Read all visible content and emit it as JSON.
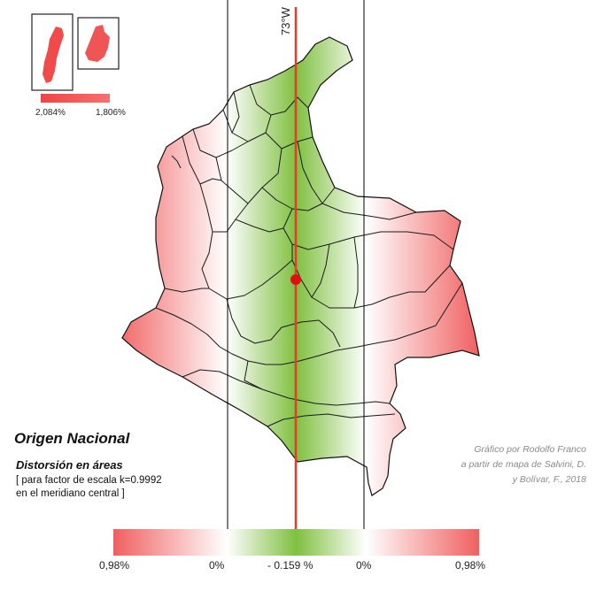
{
  "meridian": {
    "label": "73°W"
  },
  "title": "Origen Nacional",
  "subtitle": "Distorsión en áreas",
  "note_lines": [
    "[ para factor de escala k=0.9992",
    "en el meridiano central ]"
  ],
  "credit_lines": [
    "Gráfico por Rodolfo Franco",
    "a partir de mapa de Salvini, D.",
    "y Bolívar, F., 2018"
  ],
  "scale_bar": {
    "labels": [
      "0,98%",
      "0%",
      "- 0.159 %",
      "0%",
      "0,98%"
    ],
    "colors": {
      "max": "#f06060",
      "zero": "#ffffff",
      "min": "#80c040"
    }
  },
  "inset": {
    "labels": [
      "2,084%",
      "1,806%"
    ],
    "color": "#f04a4a"
  },
  "origin_marker_color": "#dd1111"
}
